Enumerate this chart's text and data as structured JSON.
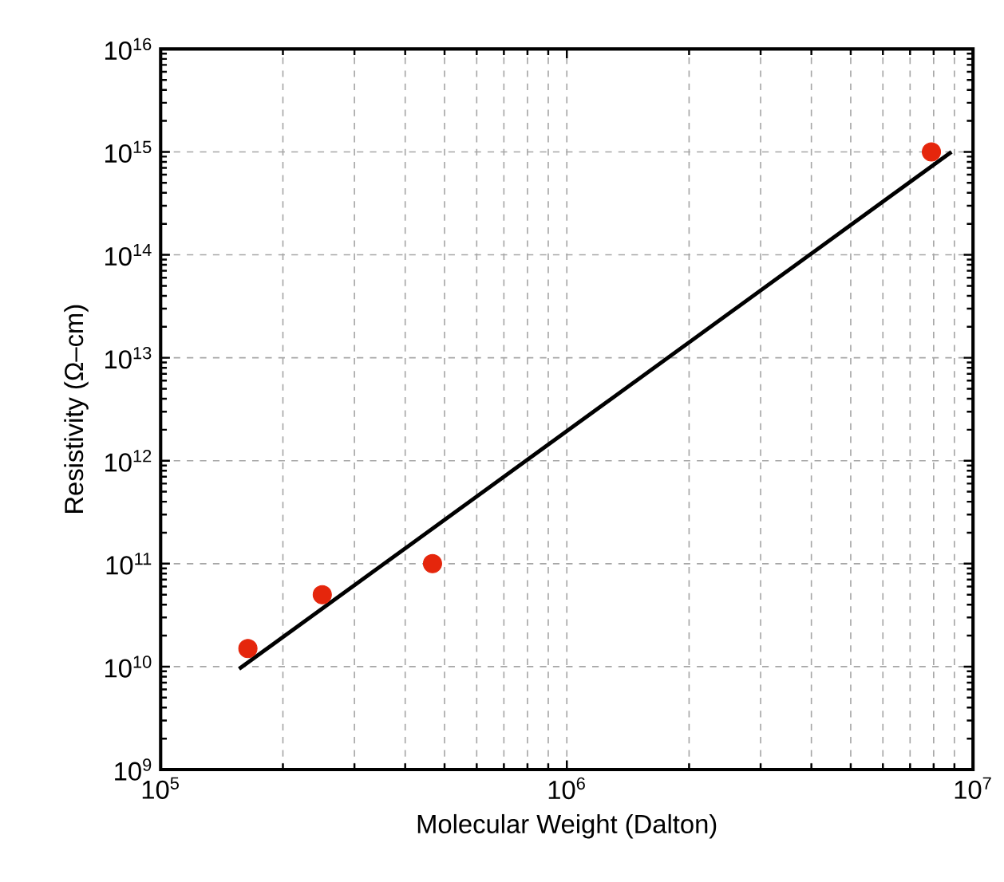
{
  "chart_data": {
    "type": "scatter",
    "xlabel": "Molecular Weight (Dalton)",
    "ylabel": "Resistivity (Ω–cm)",
    "log": "xy",
    "grid": true,
    "marker": "circle",
    "xlim": [
      100000,
      10000000
    ],
    "ylim": [
      1000000000,
      10000000000000000
    ],
    "xticks": [
      {
        "value": 100000,
        "label": "10$^{5}$"
      },
      {
        "value": 1000000,
        "label": "10$^{6}$"
      },
      {
        "value": 10000000,
        "label": "10$^{7}$"
      }
    ],
    "yticks": [
      {
        "value": 1000000000,
        "label": "10$^{9}$"
      },
      {
        "value": 10000000000,
        "label": "10$^{10}$"
      },
      {
        "value": 100000000000,
        "label": "10$^{11}$"
      },
      {
        "value": 1000000000000,
        "label": "10$^{12}$"
      },
      {
        "value": 10000000000000,
        "label": "10$^{13}$"
      },
      {
        "value": 100000000000000,
        "label": "10$^{14}$"
      },
      {
        "value": 1000000000000000,
        "label": "10$^{15}$"
      },
      {
        "value": 10000000000000000,
        "label": "10$^{16}$"
      }
    ],
    "series": [
      {
        "color": "#e5260c",
        "x": [
          164000,
          250000,
          467000,
          7900000
        ],
        "values": [
          15000000000,
          50000000000,
          100000000000,
          1000000000000000
        ]
      },
      {
        "type": "line",
        "color": "#000000",
        "marker": "none",
        "line_style": "solid",
        "x": [
          156000,
          8850000
        ],
        "values": [
          9500000000,
          1000000000000000
        ]
      }
    ]
  }
}
